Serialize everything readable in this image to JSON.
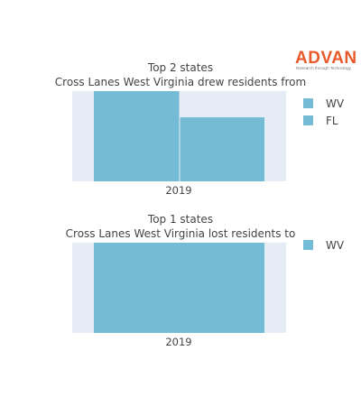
{
  "logo": {
    "brand": "ADVAN",
    "tagline": "Research through Technology",
    "color": "#e85a2a"
  },
  "chart_data": [
    {
      "type": "bar",
      "title": "Top 2 states",
      "subtitle": "Cross Lanes West Virginia drew residents from",
      "categories": [
        "2019"
      ],
      "series": [
        {
          "name": "WV",
          "values": [
            1.0
          ]
        },
        {
          "name": "FL",
          "values": [
            0.71
          ]
        }
      ],
      "ylim": [
        0,
        1.0
      ],
      "grid": true,
      "legend": "right",
      "bar_color": "#74bcd6",
      "plot_bg": "#e5ecf6"
    },
    {
      "type": "bar",
      "title": "Top 1 states",
      "subtitle": "Cross Lanes West Virginia lost residents to",
      "categories": [
        "2019"
      ],
      "series": [
        {
          "name": "WV",
          "values": [
            1.0
          ]
        }
      ],
      "ylim": [
        0,
        1.0
      ],
      "grid": true,
      "legend": "right",
      "bar_color": "#74bcd6",
      "plot_bg": "#e5ecf6"
    }
  ]
}
